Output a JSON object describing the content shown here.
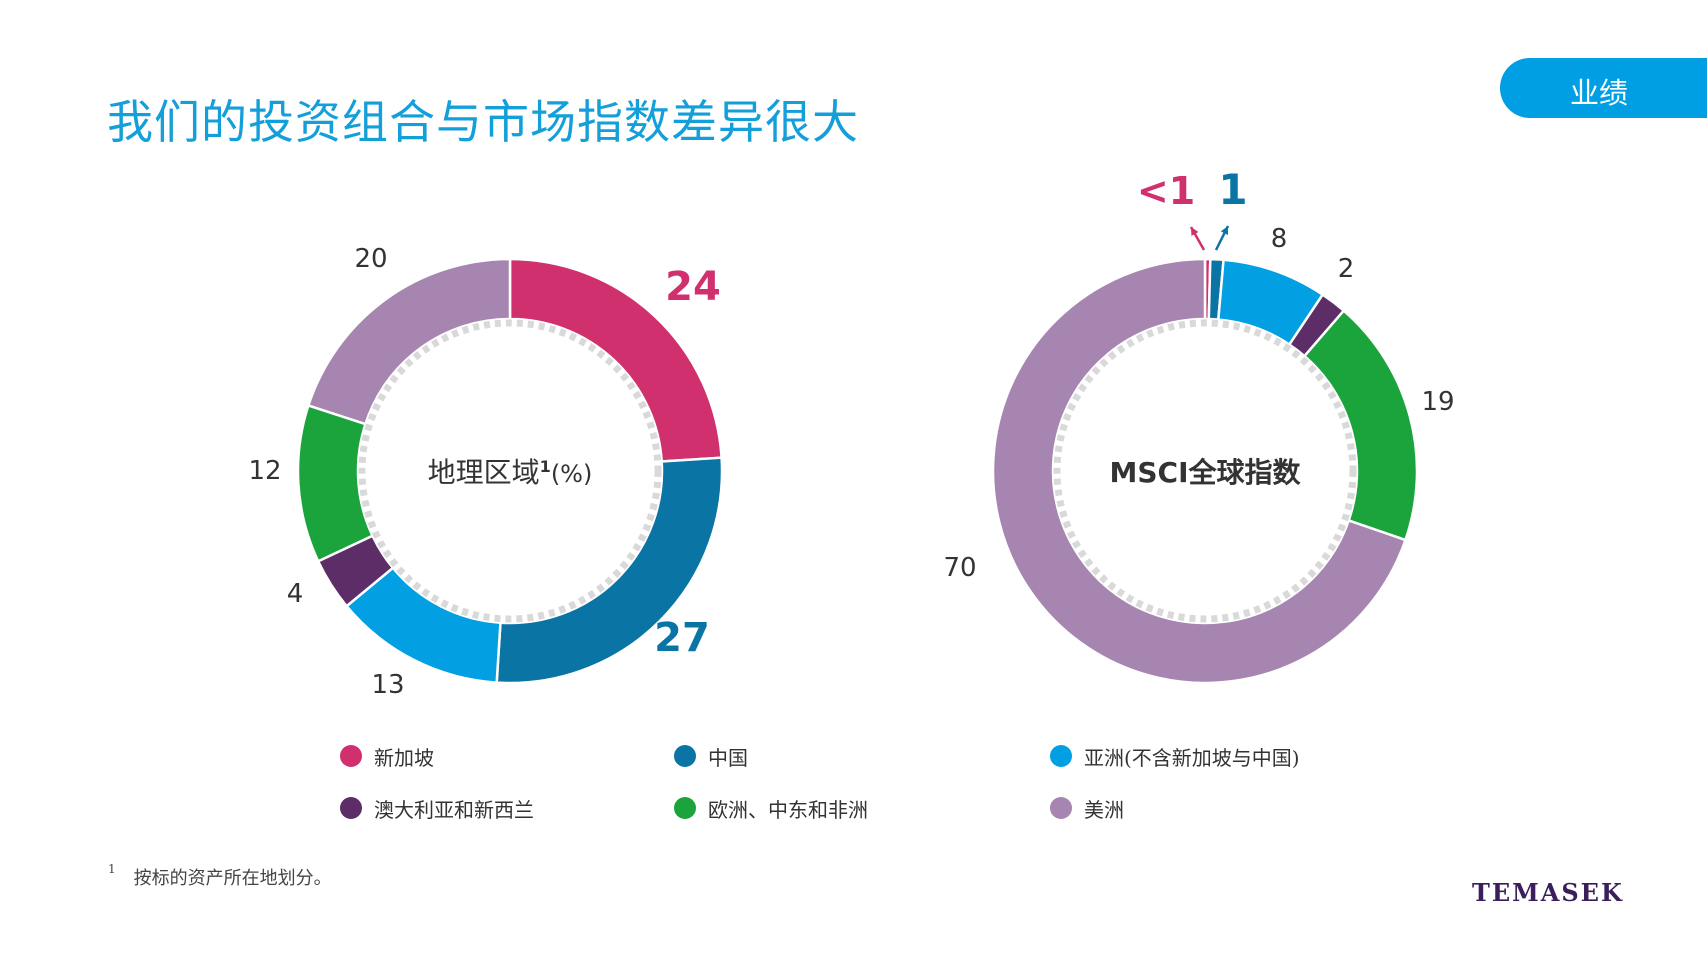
{
  "header": {
    "title": "我们的投资组合与市场指数差异很大",
    "section_tab": "业绩"
  },
  "colors": {
    "singapore": "#d0306e",
    "china": "#0a74a5",
    "asia": "#029fe3",
    "australia_nz": "#5c2d66",
    "europe_me_africa": "#1ba33c",
    "americas": "#a685b0",
    "title_blue": "#139fd9",
    "tab_blue": "#009fe3"
  },
  "legend": [
    {
      "label": "新加坡",
      "color": "#d0306e"
    },
    {
      "label": "中国",
      "color": "#0a74a5"
    },
    {
      "label": "亚洲(不含新加坡与中国)",
      "color": "#029fe3"
    },
    {
      "label": "澳大利亚和新西兰",
      "color": "#5c2d66"
    },
    {
      "label": "欧洲、中东和非洲",
      "color": "#1ba33c"
    },
    {
      "label": "美洲",
      "color": "#a685b0"
    }
  ],
  "chart_data": [
    {
      "type": "pie",
      "donut": true,
      "center_label": "地理区域",
      "center_sup": "1",
      "center_unit": "(%)",
      "slices": [
        {
          "name": "新加坡",
          "value": 24,
          "label": "24",
          "color": "#d0306e",
          "emphasis": true
        },
        {
          "name": "中国",
          "value": 27,
          "label": "27",
          "color": "#0a74a5",
          "emphasis": true
        },
        {
          "name": "亚洲(不含新加坡与中国)",
          "value": 13,
          "label": "13",
          "color": "#029fe3"
        },
        {
          "name": "澳大利亚和新西兰",
          "value": 4,
          "label": "4",
          "color": "#5c2d66"
        },
        {
          "name": "欧洲、中东和非洲",
          "value": 12,
          "label": "12",
          "color": "#1ba33c"
        },
        {
          "name": "美洲",
          "value": 20,
          "label": "20",
          "color": "#a685b0"
        }
      ]
    },
    {
      "type": "pie",
      "donut": true,
      "center_label": "MSCI全球指数",
      "slices": [
        {
          "name": "新加坡",
          "value": 0.4,
          "label": "<1",
          "color": "#d0306e",
          "emphasis": true
        },
        {
          "name": "中国",
          "value": 1,
          "label": "1",
          "color": "#0a74a5",
          "emphasis": true
        },
        {
          "name": "亚洲(不含新加坡与中国)",
          "value": 8,
          "label": "8",
          "color": "#029fe3"
        },
        {
          "name": "澳大利亚和新西兰",
          "value": 2,
          "label": "2",
          "color": "#5c2d66"
        },
        {
          "name": "欧洲、中东和非洲",
          "value": 19,
          "label": "19",
          "color": "#1ba33c"
        },
        {
          "name": "美洲",
          "value": 70,
          "label": "70",
          "color": "#a685b0"
        }
      ]
    }
  ],
  "footnote": {
    "marker": "1",
    "text": "按标的资产所在地划分。"
  },
  "logo": "TEMASEK"
}
